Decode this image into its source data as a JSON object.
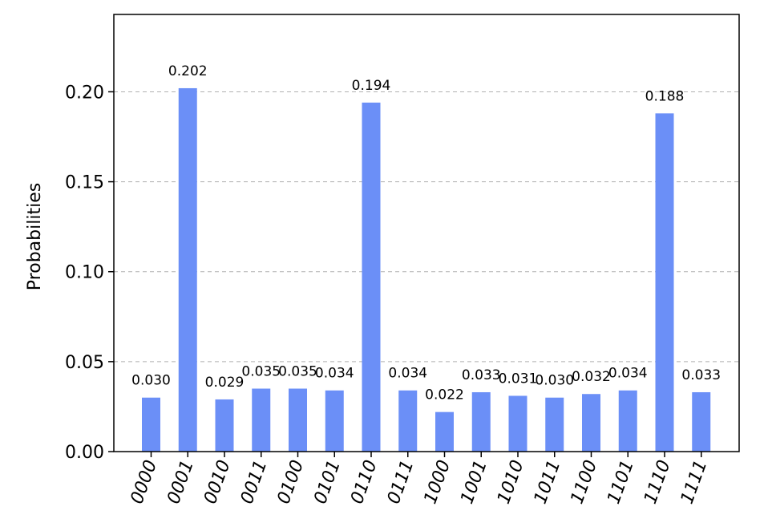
{
  "chart_data": {
    "type": "bar",
    "title": "",
    "xlabel": "",
    "ylabel": "Probabilities",
    "categories": [
      "0000",
      "0001",
      "0010",
      "0011",
      "0100",
      "0101",
      "0110",
      "0111",
      "1000",
      "1001",
      "1010",
      "1011",
      "1100",
      "1101",
      "1110",
      "1111"
    ],
    "values": [
      0.03,
      0.202,
      0.029,
      0.035,
      0.035,
      0.034,
      0.194,
      0.034,
      0.022,
      0.033,
      0.031,
      0.03,
      0.032,
      0.034,
      0.188,
      0.033
    ],
    "value_labels": [
      "0.030",
      "0.202",
      "0.029",
      "0.035",
      "0.035",
      "0.034",
      "0.194",
      "0.034",
      "0.022",
      "0.033",
      "0.031",
      "0.030",
      "0.032",
      "0.034",
      "0.188",
      "0.033"
    ],
    "yticks": [
      0.0,
      0.05,
      0.1,
      0.15,
      0.2
    ],
    "ytick_labels": [
      "0.00",
      "0.05",
      "0.10",
      "0.15",
      "0.20"
    ],
    "ylim": [
      0,
      0.243
    ],
    "grid": true,
    "bar_color": "#6b8ff7"
  }
}
